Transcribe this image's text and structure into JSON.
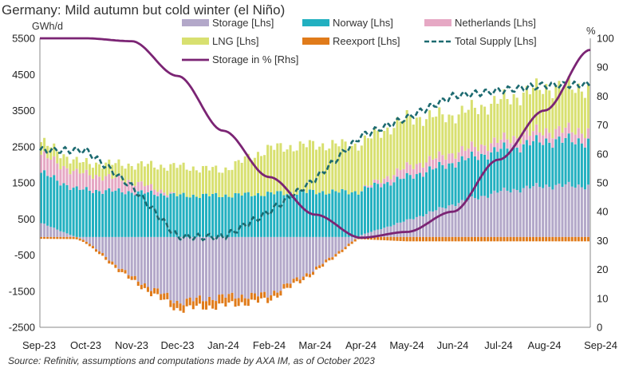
{
  "title": "Germany: Mild autumn but cold winter (el Niño)",
  "left_unit": "GWh/d",
  "right_unit": "%",
  "source": "Source: Refinitiv, assumptions and computations made by AXA IM, as of October 2023",
  "colors": {
    "storage": "#b3a8c9",
    "norway": "#22b0c0",
    "netherlands": "#e6a8c4",
    "lng": "#d8e070",
    "reexport": "#e07b1a",
    "total_supply": "#1c6a70",
    "storage_pct": "#7b2474"
  },
  "chart_data": {
    "type": "area",
    "title": "Germany: Mild autumn but cold winter (el Niño)",
    "ylabel_left": "GWh/d",
    "ylabel_right": "%",
    "ylim_left": [
      -2500,
      5500
    ],
    "ylim_right": [
      0,
      100
    ],
    "yticks_left": [
      -2500,
      -1500,
      -500,
      500,
      1500,
      2500,
      3500,
      4500,
      5500
    ],
    "yticks_right": [
      0,
      10,
      20,
      30,
      40,
      50,
      60,
      70,
      80,
      90,
      100
    ],
    "x": [
      "Sep-23",
      "Oct-23",
      "Nov-23",
      "Dec-23",
      "Jan-24",
      "Feb-24",
      "Mar-24",
      "Apr-24",
      "May-24",
      "Jun-24",
      "Jul-24",
      "Aug-24",
      "Sep-24"
    ],
    "legend_placement": "top",
    "series": [
      {
        "name": "Storage [Lhs]",
        "axis": "left",
        "kind": "stacked-bar",
        "values": [
          400,
          -100,
          -1100,
          -1800,
          -1650,
          -1600,
          -900,
          50,
          450,
          900,
          1250,
          1420,
          1420
        ]
      },
      {
        "name": "Norway [Lhs]",
        "axis": "left",
        "kind": "stacked-bar",
        "values": [
          1400,
          1300,
          1250,
          1150,
          1150,
          1200,
          1250,
          1250,
          1200,
          1150,
          1150,
          1250,
          1250
        ]
      },
      {
        "name": "Netherlands [Lhs]",
        "axis": "left",
        "kind": "stacked-bar",
        "values": [
          500,
          450,
          300,
          0,
          0,
          0,
          0,
          0,
          280,
          270,
          250,
          280,
          280
        ]
      },
      {
        "name": "LNG [Lhs]",
        "axis": "left",
        "kind": "stacked-bar",
        "values": [
          350,
          300,
          450,
          800,
          700,
          1250,
          1300,
          1300,
          1350,
          1050,
          1100,
          1200,
          1200
        ]
      },
      {
        "name": "Reexport [Lhs]",
        "axis": "left",
        "kind": "stacked-bar",
        "values": [
          -50,
          -60,
          -100,
          -200,
          -250,
          -150,
          -80,
          -60,
          -120,
          -120,
          -120,
          -120,
          -120
        ]
      },
      {
        "name": "Total Supply [Lhs]",
        "axis": "left",
        "kind": "dashed-line",
        "values": [
          2400,
          2400,
          1400,
          0,
          0,
          700,
          1600,
          2800,
          3300,
          3900,
          4050,
          4200,
          4220
        ]
      },
      {
        "name": "Storage in % [Rhs]",
        "axis": "right",
        "kind": "line",
        "values": [
          100,
          100,
          99,
          87,
          68,
          52,
          39,
          31,
          33,
          40,
          58,
          75,
          96
        ]
      }
    ]
  },
  "legend": [
    {
      "label": "Storage [Lhs]",
      "key": "storage",
      "kind": "swatch"
    },
    {
      "label": "Norway [Lhs]",
      "key": "norway",
      "kind": "swatch"
    },
    {
      "label": "Netherlands [Lhs]",
      "key": "netherlands",
      "kind": "swatch"
    },
    {
      "label": "LNG [Lhs]",
      "key": "lng",
      "kind": "swatch"
    },
    {
      "label": "Reexport [Lhs]",
      "key": "reexport",
      "kind": "swatch"
    },
    {
      "label": "Total Supply [Lhs]",
      "key": "total_supply",
      "kind": "dashed"
    },
    {
      "label": "Storage in % [Rhs]",
      "key": "storage_pct",
      "kind": "line"
    }
  ]
}
